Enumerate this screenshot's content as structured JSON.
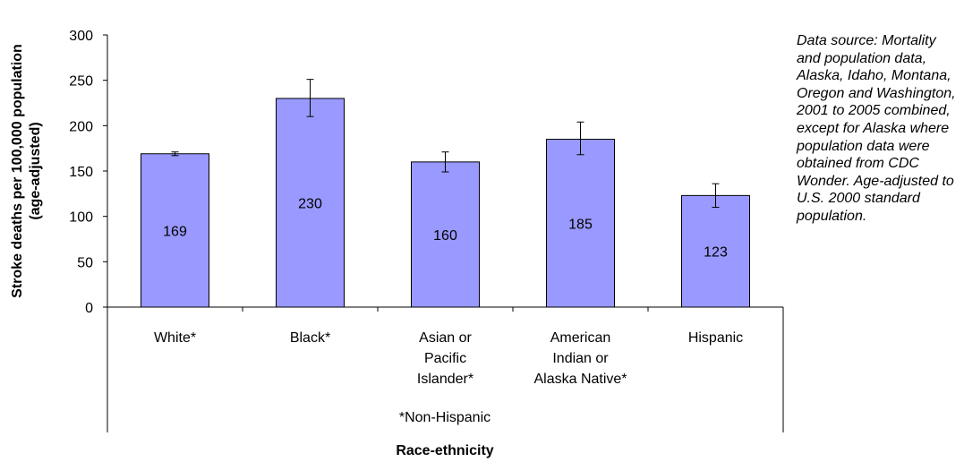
{
  "chart_data": {
    "type": "bar",
    "categories": [
      [
        "White*"
      ],
      [
        "Black*"
      ],
      [
        "Asian or",
        "Pacific",
        "Islander*"
      ],
      [
        "American",
        "Indian or",
        "Alaska Native*"
      ],
      [
        "Hispanic"
      ]
    ],
    "values": [
      169,
      230,
      160,
      185,
      123
    ],
    "data_labels": [
      "169",
      "230",
      "160",
      "185",
      "123"
    ],
    "error_bars": [
      {
        "low": 167,
        "high": 171
      },
      {
        "low": 210,
        "high": 251
      },
      {
        "low": 149,
        "high": 171
      },
      {
        "low": 168,
        "high": 204
      },
      {
        "low": 110,
        "high": 136
      }
    ],
    "ylabel_lines": [
      "Stroke deaths per 100,000 population",
      "(age-adjusted)"
    ],
    "xlabel": "Race-ethnicity",
    "footnote": "*Non-Hispanic",
    "ylim": [
      0,
      300
    ],
    "yticks": [
      0,
      50,
      100,
      150,
      200,
      250,
      300
    ],
    "bar_color": "#9999ff",
    "grid": false,
    "legend": "none"
  },
  "source_note": "Data source: Mortality and population data, Alaska, Idaho, Montana, Oregon and Washington, 2001 to 2005 combined, except for Alaska where population data were obtained from CDC Wonder. Age-adjusted to U.S. 2000 standard population."
}
